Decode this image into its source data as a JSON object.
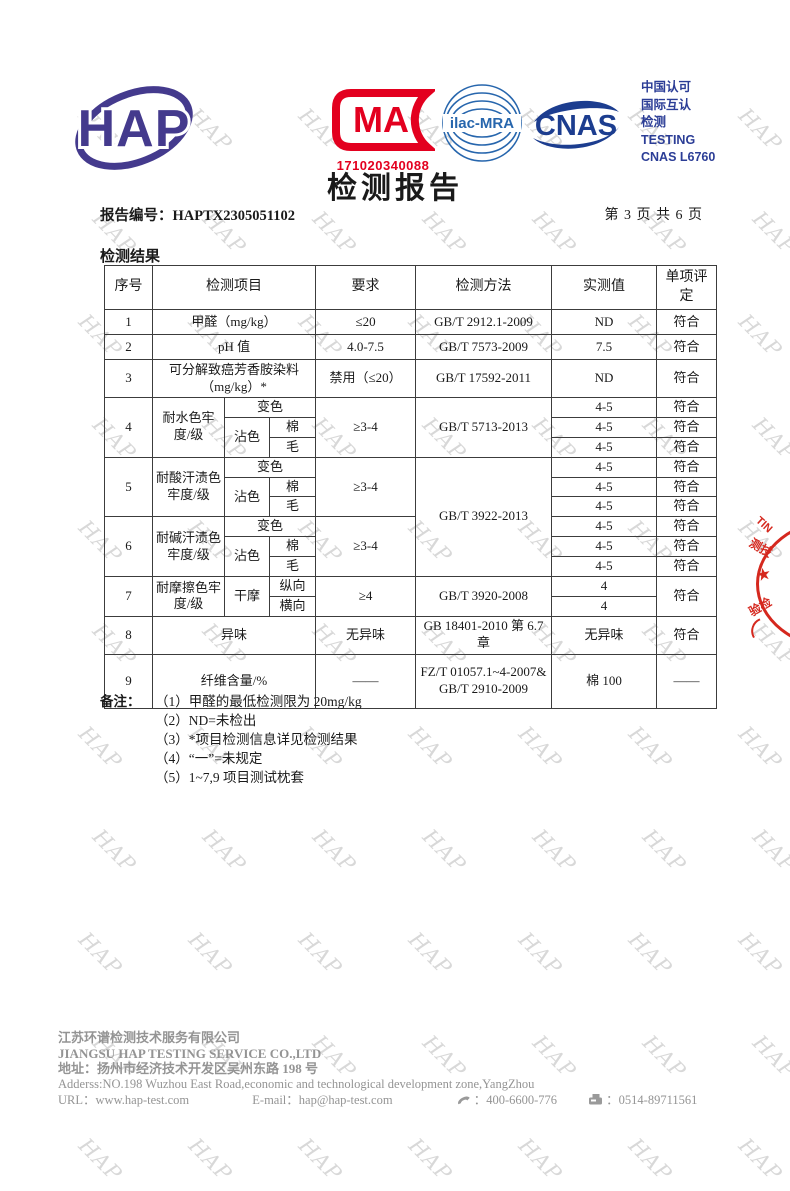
{
  "page": {
    "title": "检测报告",
    "report_no_label": "报告编号：",
    "report_no": "HAPTX2305051102",
    "page_indicator": "第 3 页 共 6 页",
    "watermark_text": "HAP"
  },
  "header": {
    "hap_logo_text": "HAP",
    "cma": {
      "letters": "MA",
      "number": "171020340088"
    },
    "ilac": {
      "label": "ilac-MRA"
    },
    "cnas": {
      "label": "CNAS"
    },
    "accreditation_lines": [
      "中国认可",
      "国际互认",
      "检测",
      "TESTING",
      "CNAS L6760"
    ],
    "colors": {
      "hap_purple": "#443a8d",
      "cma_red": "#e3001f",
      "ilac_blue": "#2766ad",
      "cnas_navy": "#1c3d8f",
      "accred_blue": "#2b3d96",
      "stamp_red": "#d5281e"
    }
  },
  "results": {
    "section_title": "检测结果",
    "rows": {
      "h": [
        "序号",
        "检测项目",
        "要求",
        "检测方法",
        "实测值",
        "单项评定"
      ],
      "r1": [
        "1",
        "甲醛（mg/kg）",
        "≤20",
        "GB/T 2912.1-2009",
        "ND",
        "符合"
      ],
      "r2": [
        "2",
        "pH 值",
        "4.0-7.5",
        "GB/T 7573-2009",
        "7.5",
        "符合"
      ],
      "r3": [
        "3",
        "可分解致癌芳香胺染料（mg/kg）*",
        "禁用（≤20）",
        "GB/T 17592-2011",
        "ND",
        "符合"
      ],
      "r4a": [
        "4",
        "耐水色牢度/级",
        "变色",
        "≥3-4",
        "GB/T 5713-2013",
        "4-5",
        "符合"
      ],
      "r4b": [
        "沾色",
        "棉",
        "4-5",
        "符合"
      ],
      "r4c": [
        "毛",
        "4-5",
        "符合"
      ],
      "r5a": [
        "5",
        "耐酸汗渍色牢度/级",
        "变色",
        "≥3-4",
        "GB/T 3922-2013",
        "4-5",
        "符合"
      ],
      "r5b": [
        "沾色",
        "棉",
        "4-5",
        "符合"
      ],
      "r5c": [
        "毛",
        "4-5",
        "符合"
      ],
      "r6a": [
        "6",
        "耐碱汗渍色牢度/级",
        "变色",
        "≥3-4",
        "4-5",
        "符合"
      ],
      "r6b": [
        "沾色",
        "棉",
        "4-5",
        "符合"
      ],
      "r6c": [
        "毛",
        "4-5",
        "符合"
      ],
      "r7a": [
        "7",
        "耐摩擦色牢度/级",
        "干摩",
        "纵向",
        "≥4",
        "GB/T 3920-2008",
        "4",
        "符合"
      ],
      "r7b": [
        "横向",
        "4"
      ],
      "r8": [
        "8",
        "异味",
        "无异味",
        "GB 18401-2010 第 6.7 章",
        "无异味",
        "符合"
      ],
      "r9": [
        "9",
        "纤维含量/%",
        "——",
        "FZ/T 01057.1~4-2007& GB/T 2910-2009",
        "棉 100",
        "——"
      ]
    },
    "notes_label": "备注：",
    "notes": [
      "（1）甲醛的最低检测限为 20mg/kg",
      "（2）ND=未检出",
      "（3）*项目检测信息详见检测结果",
      "（4）“一”=未规定",
      "（5）1~7,9 项目测试枕套"
    ]
  },
  "stamp": {
    "frag_top": "TIN",
    "frag_mid": "测技",
    "star": "★",
    "frag_bottom": "验检"
  },
  "footer": {
    "company_cn": "江苏环谱检测技术服务有限公司",
    "company_en": "JIANGSU HAP TESTING SERVICE CO.,LTD",
    "address_cn": "地址：扬州市经济技术开发区吴州东路 198 号",
    "address_en": "Adderss:NO.198 Wuzhou East Road,economic and technological development zone,YangZhou",
    "url_label": "URL：",
    "url": "www.hap-test.com",
    "email_label": "E-mail：",
    "email": "hap@hap-test.com",
    "phone": "400-6600-776",
    "fax": "0514-89711561"
  }
}
